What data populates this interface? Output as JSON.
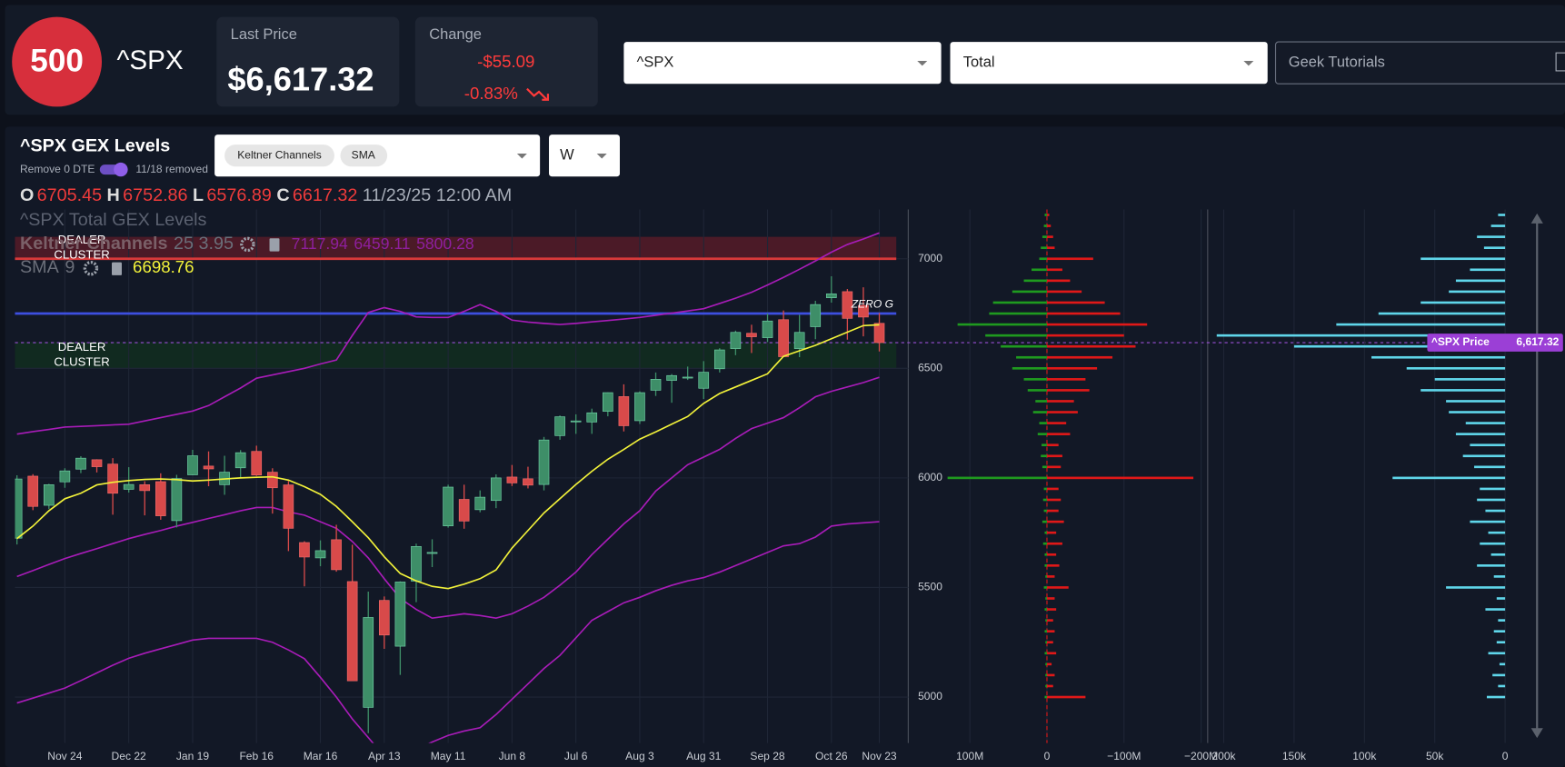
{
  "header": {
    "logo": "500",
    "symbol": "^SPX",
    "last_price_label": "Last Price",
    "last_price": "$6,617.32",
    "change_label": "Change",
    "change": "-$55.09",
    "change_pct": "-0.83%",
    "symbol_select": "^SPX",
    "type_select": "Total",
    "tutorials": "Geek Tutorials"
  },
  "controls": {
    "remove_0dte": "Remove 0 DTE",
    "removed": "11/18 removed",
    "indicators": [
      "Keltner Channels",
      "SMA"
    ],
    "interval": "W"
  },
  "chart_data": [
    {
      "type": "candlestick",
      "title": "^SPX GEX Levels",
      "subtitle": "^SPX Total GEX Levels",
      "ohlc_labels": [
        "O",
        "H",
        "L",
        "C"
      ],
      "date": "11/23/25 12:00 AM",
      "categories": [
        null,
        null,
        null,
        "Nov 24",
        null,
        null,
        null,
        "Dec 22",
        null,
        null,
        null,
        "Jan 19",
        null,
        null,
        null,
        "Feb 16",
        null,
        null,
        null,
        "Mar 16",
        null,
        null,
        null,
        "Apr 13",
        null,
        null,
        null,
        "May 11",
        null,
        null,
        null,
        "Jun 8",
        null,
        null,
        null,
        "Jul 6",
        null,
        null,
        null,
        "Aug 3",
        null,
        null,
        null,
        "Aug 31",
        null,
        null,
        null,
        "Sep 28",
        null,
        null,
        null,
        "Oct 26",
        null,
        null,
        "Nov 23"
      ],
      "open": [
        5725,
        6008,
        5875,
        5982,
        6040,
        6083,
        6063,
        5948,
        5969,
        5983,
        5805,
        6014,
        6054,
        5969,
        6046,
        6121,
        6026,
        5968,
        5705,
        5635,
        5718,
        5527,
        4953,
        5441,
        5232,
        5529,
        5655,
        5781,
        5902,
        5855,
        5897,
        6004,
        5996,
        5970,
        6193,
        6259,
        6255,
        6304,
        6371,
        6261,
        6400,
        6445,
        6457,
        6409,
        6498,
        6590,
        6660,
        6640,
        6722,
        6590,
        6690,
        6822,
        6850,
        6787,
        6705.45
      ],
      "high": [
        6012,
        6017,
        5973,
        6044,
        6099,
        6085,
        6090,
        6049,
        5985,
        6021,
        6014,
        6128,
        6121,
        6101,
        6127,
        6147,
        6044,
        5986,
        5711,
        5715,
        5786,
        5695,
        5481,
        5459,
        5528,
        5700,
        5720,
        5969,
        5969,
        5943,
        6016,
        6059,
        6051,
        6187,
        6285,
        6290,
        6316,
        6390,
        6427,
        6395,
        6481,
        6474,
        6508,
        6533,
        6592,
        6672,
        6699,
        6750,
        6764,
        6744,
        6808,
        6920,
        6862,
        6870,
        6752.86
      ],
      "low": [
        5696,
        5853,
        5858,
        5955,
        6022,
        6025,
        5832,
        5933,
        5829,
        5809,
        5774,
        6012,
        5962,
        5923,
        6003,
        6009,
        5837,
        5666,
        5505,
        5597,
        5572,
        5074,
        4835,
        5220,
        5101,
        5433,
        5593,
        5773,
        5768,
        5843,
        5862,
        5963,
        5952,
        5943,
        6174,
        6201,
        6201,
        6281,
        6212,
        6246,
        6374,
        6343,
        6447,
        6360,
        6481,
        6560,
        6570,
        6620,
        6551,
        6551,
        6633,
        6800,
        6631,
        6646,
        6576.89
      ],
      "close": [
        5995,
        5870,
        5969,
        6032,
        6090,
        6051,
        5930,
        5970,
        5942,
        5827,
        5997,
        6101,
        6041,
        6026,
        6115,
        6013,
        5955,
        5770,
        5639,
        5668,
        5581,
        5074,
        5363,
        5283,
        5525,
        5687,
        5660,
        5958,
        5803,
        5912,
        6000,
        5977,
        5967,
        6173,
        6279,
        6260,
        6297,
        6389,
        6238,
        6389,
        6450,
        6467,
        6460,
        6482,
        6584,
        6664,
        6644,
        6716,
        6553,
        6664,
        6791,
        6840,
        6728,
        6734,
        6617.32
      ],
      "up_color": "#3e8e68",
      "down_color": "#d84a4a",
      "ylim": [
        4790,
        7225
      ],
      "yticks": [
        5000,
        5500,
        6000,
        6500,
        7000
      ],
      "grid": true,
      "overlays": [
        {
          "name": "Keltner Channels",
          "params": "25 3.95",
          "color": "#a81cb8",
          "series": [
            {
              "values": [
                6200,
                6211,
                6221,
                6232,
                6235,
                6238,
                6242,
                6245,
                6260,
                6275,
                6290,
                6305,
                6330,
                6370,
                6410,
                6455,
                6470,
                6485,
                6500,
                6520,
                6538,
                6650,
                6755,
                6777,
                6760,
                6735,
                6732,
                6732,
                6760,
                6791,
                6760,
                6720,
                6711,
                6705,
                6700,
                6705,
                6712,
                6718,
                6725,
                6732,
                6742,
                6752,
                6762,
                6772,
                6796,
                6820,
                6847,
                6880,
                6915,
                6952,
                6990,
                7030,
                7065,
                7090,
                7117.94
              ]
            },
            {
              "values": [
                5550,
                5577,
                5605,
                5632,
                5655,
                5677,
                5700,
                5723,
                5742,
                5760,
                5780,
                5797,
                5815,
                5832,
                5850,
                5865,
                5865,
                5845,
                5830,
                5800,
                5770,
                5710,
                5635,
                5540,
                5450,
                5400,
                5360,
                5370,
                5380,
                5372,
                5360,
                5380,
                5415,
                5455,
                5510,
                5570,
                5650,
                5720,
                5790,
                5850,
                5940,
                6000,
                6060,
                6095,
                6130,
                6180,
                6225,
                6250,
                6275,
                6320,
                6370,
                6395,
                6415,
                6435,
                6459.11
              ]
            },
            {
              "values": [
                4973,
                4995,
                5018,
                5041,
                5075,
                5110,
                5145,
                5177,
                5200,
                5220,
                5240,
                5260,
                5268,
                5268,
                5268,
                5268,
                5250,
                5215,
                5175,
                5090,
                5000,
                4900,
                4815,
                4730,
                4700,
                4760,
                4795,
                4825,
                4845,
                4860,
                4920,
                4990,
                5060,
                5130,
                5190,
                5270,
                5350,
                5390,
                5430,
                5455,
                5485,
                5510,
                5530,
                5545,
                5570,
                5600,
                5630,
                5660,
                5690,
                5700,
                5730,
                5780,
                5790,
                5795,
                5800.28
              ]
            }
          ]
        },
        {
          "name": "SMA",
          "period": 9,
          "color": "#f2f23a",
          "values": [
            5723,
            5780,
            5850,
            5905,
            5930,
            5968,
            5980,
            5988,
            5993,
            5995,
            5992,
            5986,
            5990,
            5995,
            6000,
            6003,
            6005,
            5990,
            5960,
            5925,
            5870,
            5800,
            5727,
            5640,
            5564,
            5530,
            5505,
            5495,
            5515,
            5540,
            5580,
            5680,
            5760,
            5840,
            5905,
            5970,
            6030,
            6085,
            6130,
            6177,
            6210,
            6245,
            6280,
            6340,
            6385,
            6415,
            6445,
            6475,
            6555,
            6580,
            6605,
            6635,
            6665,
            6695,
            6698.76
          ]
        }
      ],
      "levels": [
        {
          "value": 7000,
          "color": "#d93a3a"
        },
        {
          "value": 6750,
          "color": "#3d4fe0",
          "label": "ZERO G"
        },
        {
          "value": 6617.32,
          "color": "#9b4fd8",
          "dashed": true
        }
      ],
      "bands": [
        {
          "from": 7000,
          "to": 7100,
          "color": "#5a1c28",
          "label": [
            "DEALER",
            "CLUSTER"
          ]
        },
        {
          "from": 6500,
          "to": 6620,
          "color": "#12301f",
          "label": [
            "DEALER",
            "CLUSTER"
          ]
        }
      ]
    },
    {
      "type": "hbar",
      "y": [
        5000,
        5050,
        5100,
        5150,
        5200,
        5250,
        5300,
        5350,
        5400,
        5450,
        5500,
        5550,
        5600,
        5650,
        5700,
        5750,
        5800,
        5850,
        5900,
        5950,
        6000,
        6050,
        6100,
        6150,
        6200,
        6250,
        6300,
        6350,
        6400,
        6450,
        6500,
        6550,
        6600,
        6650,
        6700,
        6750,
        6800,
        6850,
        6900,
        6950,
        7000,
        7050,
        7100,
        7150,
        7200
      ],
      "series": [
        {
          "color": "#1f9a1f",
          "values": [
            3,
            2,
            2,
            2,
            3,
            2,
            3,
            2,
            3,
            2,
            4,
            2,
            3,
            3,
            5,
            3,
            6,
            4,
            5,
            4,
            129,
            6,
            8,
            7,
            12,
            10,
            18,
            15,
            25,
            30,
            45,
            40,
            60,
            80,
            116,
            75,
            70,
            45,
            30,
            20,
            10,
            8,
            6,
            4,
            3
          ]
        },
        {
          "color": "#e01818",
          "values": [
            -50,
            -8,
            -10,
            -6,
            -12,
            -8,
            -10,
            -8,
            -12,
            -10,
            -28,
            -10,
            -16,
            -12,
            -20,
            -12,
            -22,
            -15,
            -18,
            -15,
            -190,
            -18,
            -20,
            -15,
            -30,
            -25,
            -40,
            -35,
            -55,
            -50,
            -65,
            -85,
            -115,
            -100,
            -130,
            -95,
            -75,
            -45,
            -30,
            -20,
            -60,
            -10,
            -8,
            -5,
            -3
          ]
        }
      ],
      "xlim": [
        180,
        -206
      ],
      "xticks": [
        {
          "value": 100,
          "label": "100M"
        },
        0,
        {
          "value": -100,
          "label": "−100M"
        },
        {
          "value": -200,
          "label": "−200M"
        }
      ],
      "ylim": [
        4790,
        7225
      ],
      "zero_line_color": "#e01818"
    },
    {
      "type": "hbar",
      "y": [
        5000,
        5050,
        5100,
        5150,
        5200,
        5250,
        5300,
        5350,
        5400,
        5450,
        5500,
        5550,
        5600,
        5650,
        5700,
        5750,
        5800,
        5850,
        5900,
        5950,
        6000,
        6050,
        6100,
        6150,
        6200,
        6250,
        6300,
        6350,
        6400,
        6450,
        6500,
        6550,
        6600,
        6650,
        6700,
        6750,
        6800,
        6850,
        6900,
        6950,
        7000,
        7050,
        7100,
        7150,
        7200
      ],
      "series": [
        {
          "color": "#5fd6ea",
          "values": [
            13000,
            5000,
            9000,
            4000,
            12000,
            6000,
            8000,
            5000,
            14000,
            6000,
            42000,
            8000,
            20000,
            10000,
            18000,
            12000,
            25000,
            14000,
            20000,
            18000,
            80000,
            22000,
            30000,
            25000,
            35000,
            28000,
            40000,
            42000,
            60000,
            50000,
            70000,
            95000,
            150000,
            205000,
            120000,
            90000,
            60000,
            40000,
            35000,
            25000,
            60000,
            15000,
            20000,
            10000,
            5000
          ]
        }
      ],
      "xlim": [
        210000,
        0
      ],
      "xticks": [
        {
          "value": 200000,
          "label": "200k"
        },
        {
          "value": 150000,
          "label": "150k"
        },
        {
          "value": 100000,
          "label": "100k"
        },
        {
          "value": 50000,
          "label": "50k"
        },
        0
      ],
      "ylim": [
        4790,
        7225
      ],
      "price_tag": {
        "name": "^SPX Price",
        "value": 6617.32,
        "label": "6,617.32",
        "color": "#9b3fd6"
      }
    }
  ]
}
